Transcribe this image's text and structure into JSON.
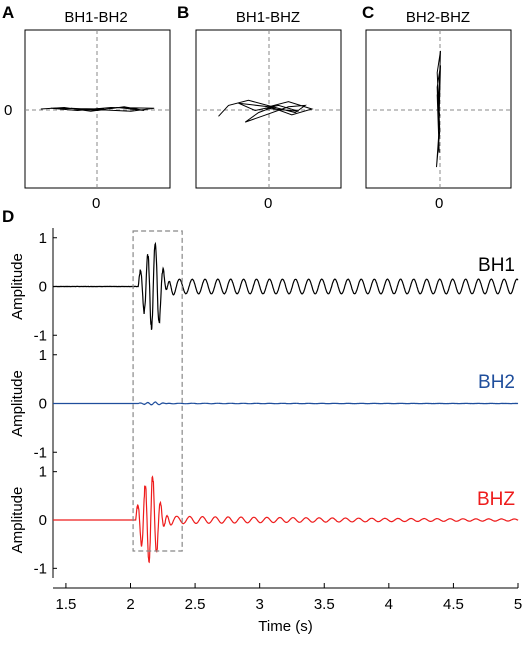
{
  "panels": {
    "A": {
      "label": "A",
      "title": "BH1-BH2",
      "xtick": "0",
      "ytick": "0"
    },
    "B": {
      "label": "B",
      "title": "BH1-BHZ",
      "xtick": "0"
    },
    "C": {
      "label": "C",
      "title": "BH2-BHZ",
      "xtick": "0"
    },
    "D": {
      "label": "D"
    }
  },
  "chart_data": [
    {
      "type": "scatter",
      "title": "BH1-BH2",
      "xlabel": "",
      "ylabel": "",
      "x_ticks": [
        "0"
      ],
      "y_ticks": [
        "0"
      ],
      "grid": false,
      "note": "particle motion hodogram, zero reference lines dashed",
      "xlim": [
        -1,
        1
      ],
      "ylim": [
        -1,
        1
      ],
      "path": [
        [
          -0.85,
          0.0
        ],
        [
          -0.5,
          0.02
        ],
        [
          -0.1,
          -0.03
        ],
        [
          0.3,
          0.02
        ],
        [
          0.7,
          -0.02
        ],
        [
          0.4,
          0.03
        ],
        [
          0.0,
          -0.02
        ],
        [
          -0.4,
          0.01
        ],
        [
          0.5,
          -0.03
        ],
        [
          0.85,
          0.01
        ],
        [
          0.2,
          0.02
        ],
        [
          -0.3,
          -0.02
        ],
        [
          -0.7,
          0.01
        ],
        [
          0.1,
          0.0
        ]
      ],
      "color": "#000000"
    },
    {
      "type": "scatter",
      "title": "BH1-BHZ",
      "xlabel": "",
      "ylabel": "",
      "x_ticks": [
        "0"
      ],
      "grid": false,
      "xlim": [
        -1,
        1
      ],
      "ylim": [
        -1,
        1
      ],
      "path": [
        [
          -0.75,
          -0.1
        ],
        [
          -0.6,
          0.05
        ],
        [
          -0.3,
          0.12
        ],
        [
          0.1,
          0.02
        ],
        [
          0.4,
          -0.05
        ],
        [
          0.55,
          0.05
        ],
        [
          0.3,
          0.03
        ],
        [
          -0.1,
          -0.1
        ],
        [
          -0.35,
          -0.18
        ],
        [
          -0.15,
          -0.05
        ],
        [
          0.05,
          0.02
        ],
        [
          0.35,
          -0.08
        ],
        [
          0.65,
          0.0
        ],
        [
          0.3,
          0.1
        ],
        [
          0.0,
          0.03
        ],
        [
          -0.45,
          0.08
        ],
        [
          -0.2,
          -0.02
        ],
        [
          0.15,
          0.05
        ],
        [
          0.45,
          -0.03
        ],
        [
          -0.05,
          0.01
        ]
      ],
      "color": "#000000"
    },
    {
      "type": "scatter",
      "title": "BH2-BHZ",
      "xlabel": "",
      "ylabel": "",
      "x_ticks": [
        "0"
      ],
      "grid": false,
      "xlim": [
        -1,
        1
      ],
      "ylim": [
        -1,
        1
      ],
      "path": [
        [
          0.0,
          0.0
        ],
        [
          0.03,
          0.8
        ],
        [
          -0.02,
          0.5
        ],
        [
          0.02,
          -0.3
        ],
        [
          -0.03,
          -0.8
        ],
        [
          0.0,
          -0.4
        ],
        [
          0.03,
          0.6
        ],
        [
          -0.02,
          0.3
        ],
        [
          0.01,
          -0.6
        ],
        [
          -0.02,
          0.2
        ],
        [
          0.02,
          -0.1
        ],
        [
          0.0,
          0.0
        ]
      ],
      "color": "#000000"
    },
    {
      "type": "line",
      "x_ticks": [
        "1.5",
        "2",
        "2.5",
        "3",
        "3.5",
        "4",
        "4.5",
        "5"
      ],
      "xlabel": "Time (s)",
      "xlim": [
        1.4,
        5.0
      ],
      "y_tick_labels": [
        "1",
        "0",
        "-1"
      ],
      "ylim": [
        -1.2,
        1.2
      ],
      "highlight_window": {
        "x0": 2.02,
        "x1": 2.4
      },
      "panels": [
        {
          "ylabel": "Amplitude",
          "channel": "BH1",
          "color": "#000000",
          "arrival": 2.06,
          "burst_peak": 1.0,
          "coda_amp": 0.15,
          "coda_decay": 0.0,
          "noise": 0.004
        },
        {
          "ylabel": "Amplitude",
          "channel": "BH2",
          "color": "#1f4e9c",
          "arrival": 2.06,
          "burst_peak": 0.03,
          "coda_amp": 0.006,
          "coda_decay": 0.5,
          "noise": 0.002
        },
        {
          "ylabel": "Amplitude",
          "channel": "BHZ",
          "color": "#ee1c1c",
          "arrival": 2.04,
          "burst_peak": 1.0,
          "coda_amp": 0.09,
          "coda_decay": 0.5,
          "noise": 0.002
        }
      ]
    }
  ]
}
